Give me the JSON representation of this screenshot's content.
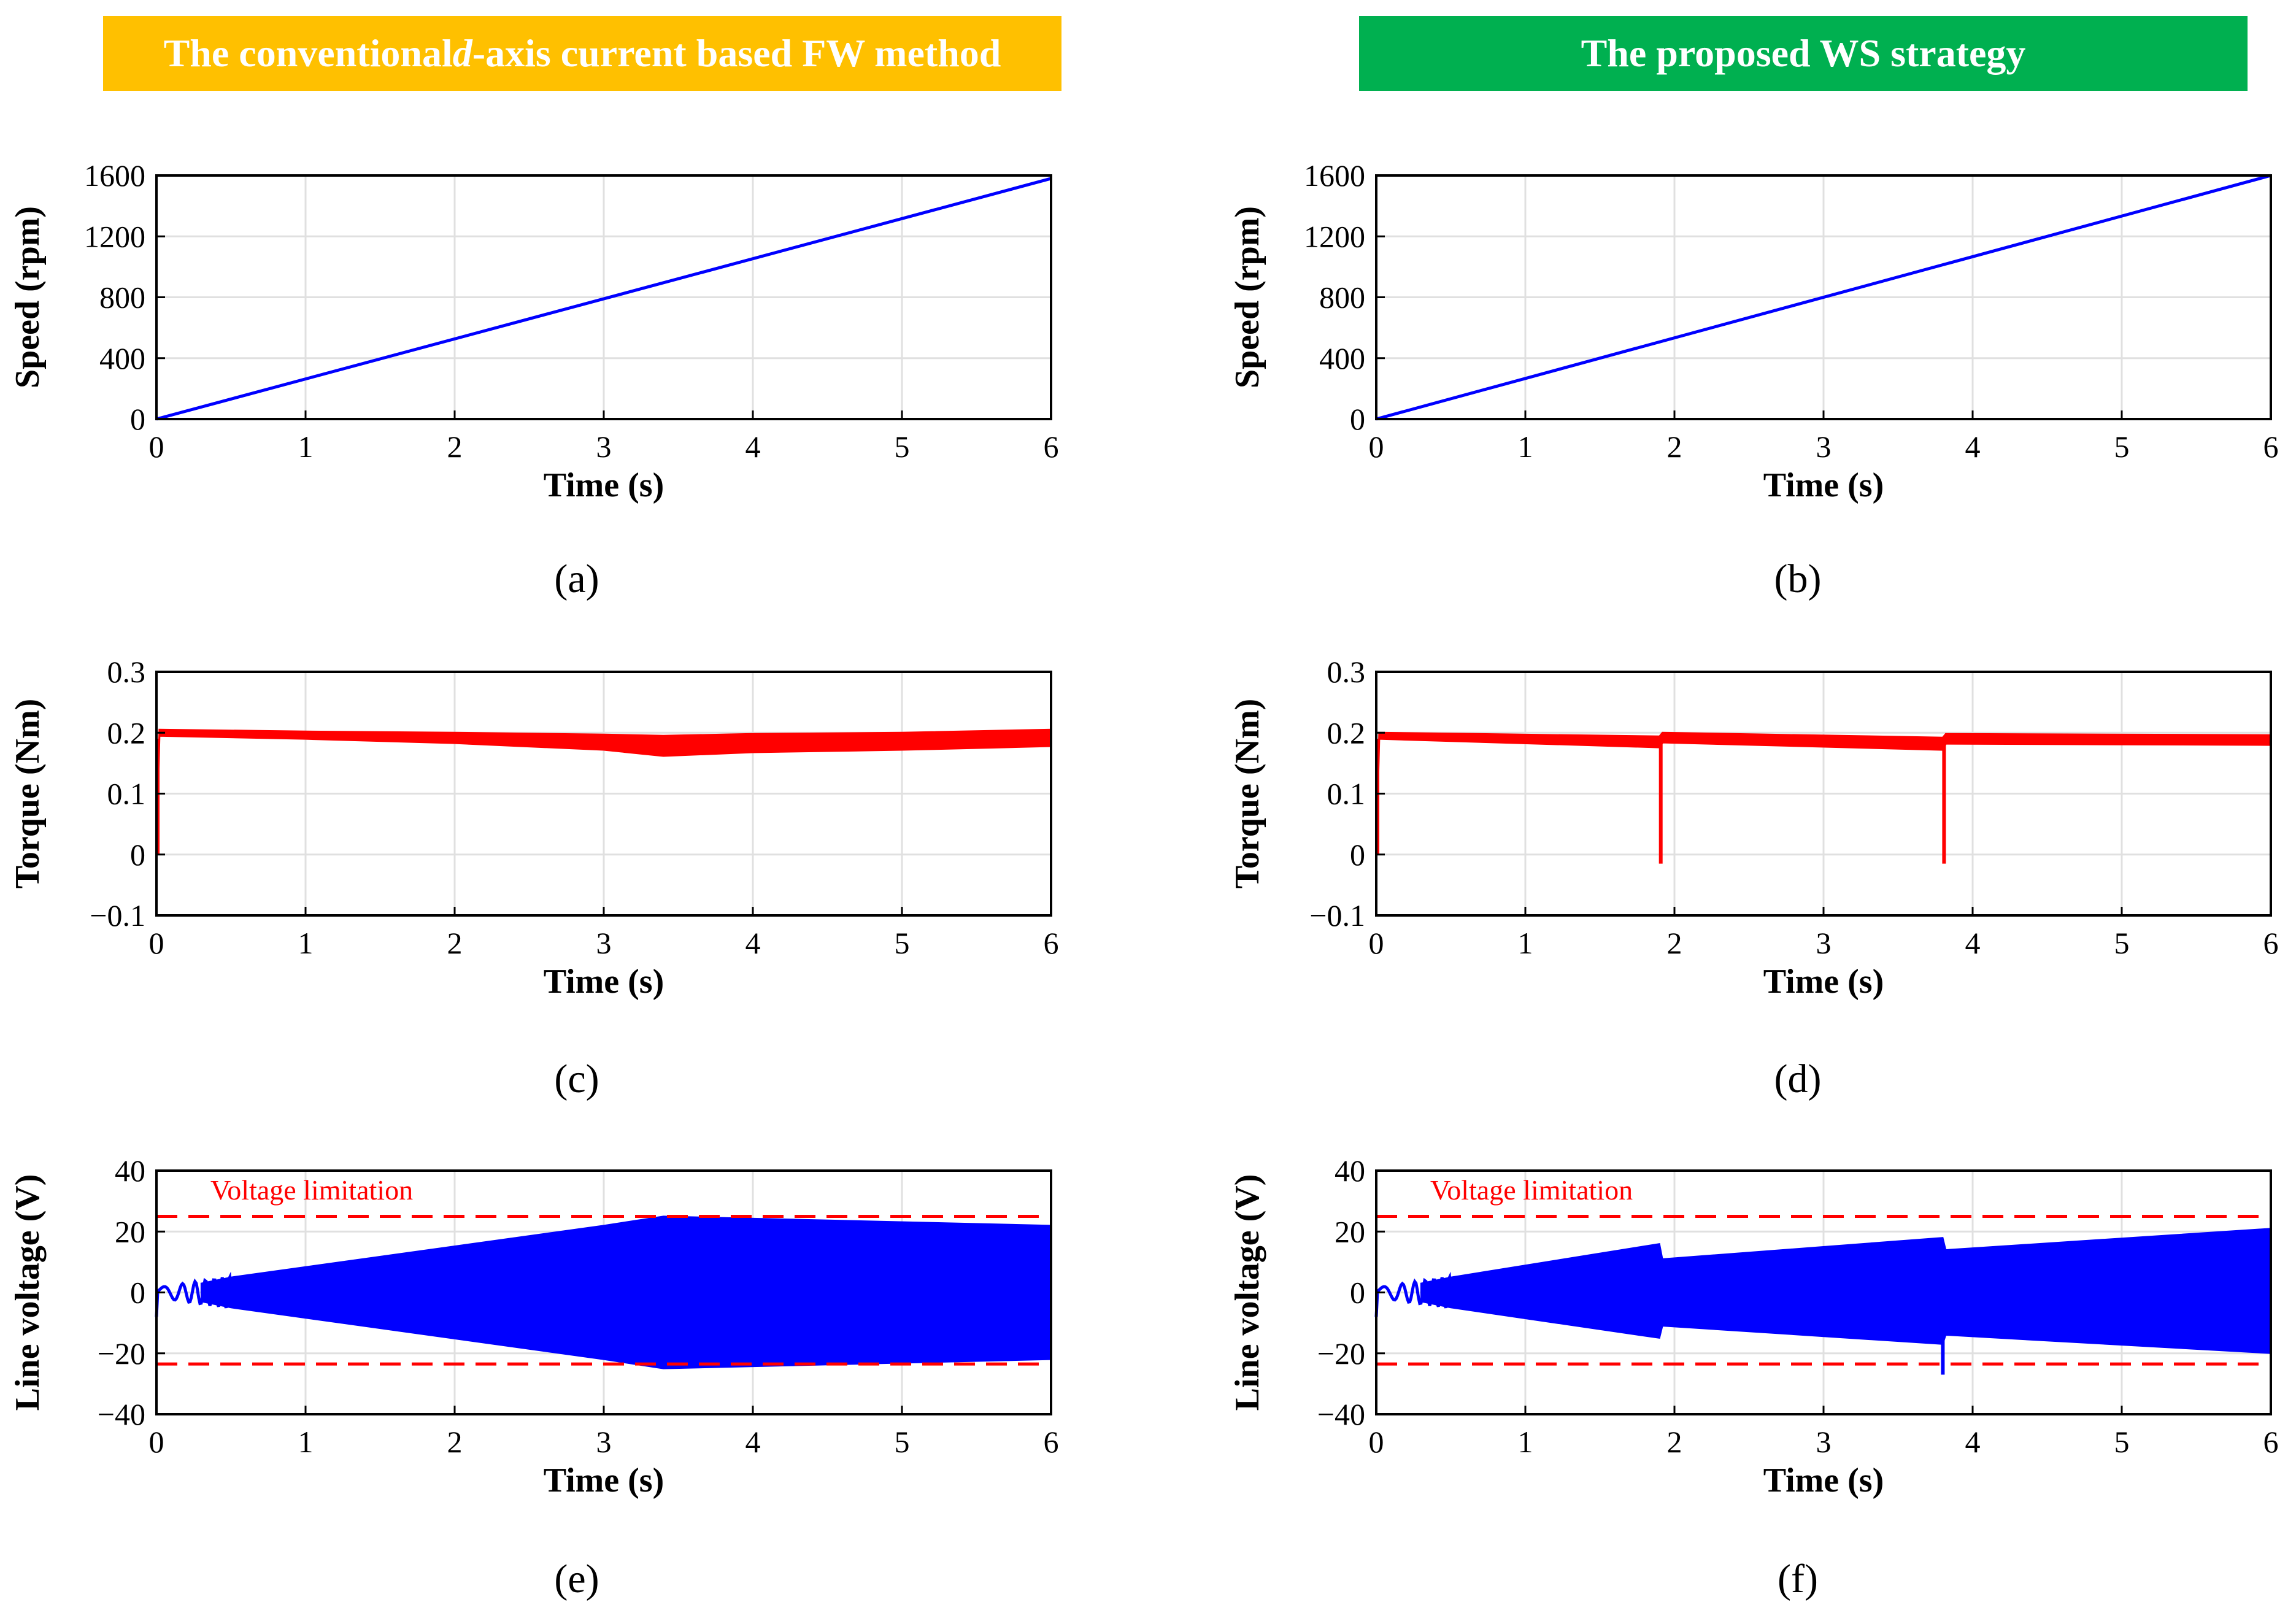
{
  "banners": {
    "left": {
      "prefix": "The conventional ",
      "italic": "d",
      "suffix": "-axis current based FW method",
      "color": "#FFC000"
    },
    "right": {
      "text": "The proposed WS strategy",
      "color": "#00B050"
    }
  },
  "colors": {
    "speed": "#0000ff",
    "torque": "#ff0000",
    "voltage": "#0000ff",
    "limit": "#ff0000",
    "grid": "#e0e0e0"
  },
  "chart_data": [
    {
      "id": "a",
      "panel_label": "(a)",
      "type": "line",
      "xlabel": "Time (s)",
      "ylabel": "Speed (rpm)",
      "xlim": [
        0,
        6
      ],
      "ylim": [
        0,
        1600
      ],
      "xticks": [
        "0",
        "1",
        "2",
        "3",
        "4",
        "5",
        "6"
      ],
      "yticks": [
        "0",
        "400",
        "800",
        "1200",
        "1600"
      ],
      "series": [
        {
          "name": "speed",
          "x": [
            0,
            6
          ],
          "y": [
            0,
            1580
          ]
        }
      ]
    },
    {
      "id": "b",
      "panel_label": "(b)",
      "type": "line",
      "xlabel": "Time (s)",
      "ylabel": "Speed (rpm)",
      "xlim": [
        0,
        6
      ],
      "ylim": [
        0,
        1600
      ],
      "xticks": [
        "0",
        "1",
        "2",
        "3",
        "4",
        "5",
        "6"
      ],
      "yticks": [
        "0",
        "400",
        "800",
        "1200",
        "1600"
      ],
      "series": [
        {
          "name": "speed",
          "x": [
            0,
            6
          ],
          "y": [
            0,
            1600
          ]
        }
      ]
    },
    {
      "id": "c",
      "panel_label": "(c)",
      "type": "line",
      "xlabel": "Time (s)",
      "ylabel": "Torque (Nm)",
      "xlim": [
        0,
        6
      ],
      "ylim": [
        -0.1,
        0.3
      ],
      "xticks": [
        "0",
        "1",
        "2",
        "3",
        "4",
        "5",
        "6"
      ],
      "yticks": [
        "−0.1",
        "0",
        "0.1",
        "0.2",
        "0.3"
      ],
      "series": [
        {
          "name": "torque band",
          "x": [
            0,
            0.02,
            1,
            2,
            3,
            3.4,
            4,
            5,
            6
          ],
          "upper": [
            0.0,
            0.205,
            0.202,
            0.2,
            0.197,
            0.195,
            0.198,
            0.2,
            0.205
          ],
          "lower": [
            0.0,
            0.195,
            0.19,
            0.183,
            0.172,
            0.162,
            0.168,
            0.172,
            0.178
          ]
        }
      ],
      "transients": [
        {
          "x": 0.0,
          "min": 0.0
        }
      ]
    },
    {
      "id": "d",
      "panel_label": "(d)",
      "type": "line",
      "xlabel": "Time (s)",
      "ylabel": "Torque (Nm)",
      "xlim": [
        0,
        6
      ],
      "ylim": [
        -0.1,
        0.3
      ],
      "xticks": [
        "0",
        "1",
        "2",
        "3",
        "4",
        "5",
        "6"
      ],
      "yticks": [
        "−0.1",
        "0",
        "0.1",
        "0.2",
        "0.3"
      ],
      "series": [
        {
          "name": "torque band",
          "x": [
            0,
            0.02,
            1.9,
            1.92,
            3.8,
            3.82,
            6
          ],
          "upper": [
            0.0,
            0.2,
            0.194,
            0.2,
            0.192,
            0.198,
            0.196
          ],
          "lower": [
            0.0,
            0.19,
            0.176,
            0.184,
            0.172,
            0.182,
            0.18
          ]
        }
      ],
      "transients": [
        {
          "x": 0.0,
          "min": 0.0
        },
        {
          "x": 1.9,
          "min": -0.015
        },
        {
          "x": 3.8,
          "min": -0.015
        }
      ]
    },
    {
      "id": "e",
      "panel_label": "(e)",
      "type": "line",
      "xlabel": "Time (s)",
      "ylabel": "Line voltage (V)",
      "xlim": [
        0,
        6
      ],
      "ylim": [
        -40,
        40
      ],
      "xticks": [
        "0",
        "1",
        "2",
        "3",
        "4",
        "5",
        "6"
      ],
      "yticks": [
        "−40",
        "−20",
        "0",
        "20",
        "40"
      ],
      "series": [
        {
          "name": "line voltage envelope",
          "x": [
            0.5,
            3.0,
            3.4,
            6.0
          ],
          "upper": [
            5,
            22,
            25,
            22
          ],
          "lower": [
            -5,
            -22,
            -25,
            -22
          ]
        }
      ],
      "limits": [
        25,
        -23.5
      ],
      "annotation": "Voltage limitation"
    },
    {
      "id": "f",
      "panel_label": "(f)",
      "type": "line",
      "xlabel": "Time (s)",
      "ylabel": "Line voltage (V)",
      "xlim": [
        0,
        6
      ],
      "ylim": [
        -40,
        40
      ],
      "xticks": [
        "0",
        "1",
        "2",
        "3",
        "4",
        "5",
        "6"
      ],
      "yticks": [
        "−40",
        "−20",
        "0",
        "20",
        "40"
      ],
      "series": [
        {
          "name": "line voltage envelope",
          "x": [
            0.5,
            1.9,
            1.92,
            3.8,
            3.82,
            6.0
          ],
          "upper": [
            5,
            16,
            11,
            18,
            14,
            21
          ],
          "lower": [
            -5,
            -15,
            -11,
            -17,
            -14,
            -20
          ]
        }
      ],
      "limits": [
        25,
        -23.5
      ],
      "annotation": "Voltage limitation"
    }
  ]
}
